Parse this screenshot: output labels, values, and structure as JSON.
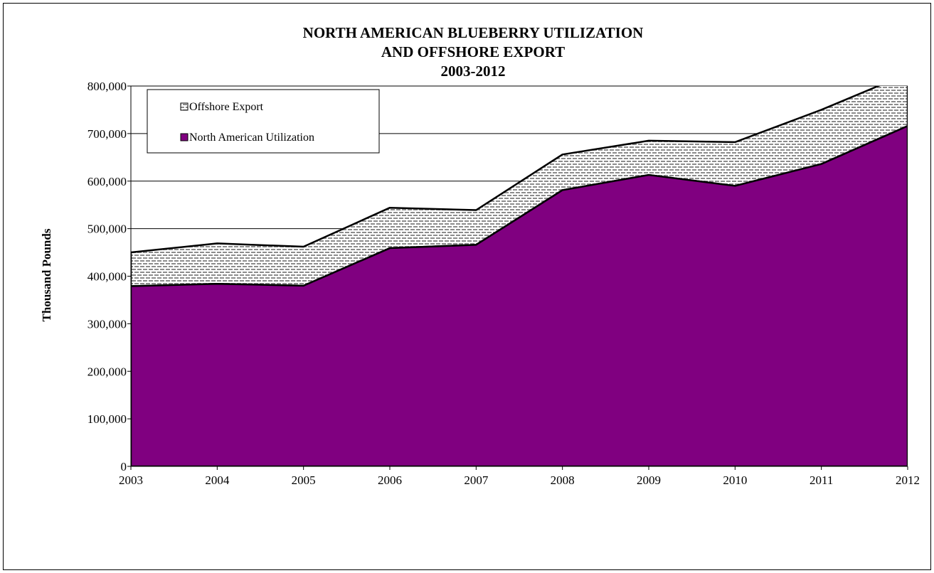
{
  "chart_data": {
    "type": "area",
    "stacked": true,
    "title_lines": [
      "NORTH AMERICAN BLUEBERRY UTILIZATION",
      "AND OFFSHORE EXPORT",
      "2003-2012"
    ],
    "xlabel": "",
    "ylabel": "Thousand Pounds",
    "x": [
      "2003",
      "2004",
      "2005",
      "2006",
      "2007",
      "2008",
      "2009",
      "2010",
      "2011",
      "2012"
    ],
    "ylim": [
      0,
      800000
    ],
    "yticks": [
      0,
      100000,
      200000,
      300000,
      400000,
      500000,
      600000,
      700000,
      800000
    ],
    "ytick_labels": [
      "0",
      "100,000",
      "200,000",
      "300,000",
      "400,000",
      "500,000",
      "600,000",
      "700,000",
      "800,000"
    ],
    "grid": "horizontal",
    "legend": "top-left",
    "series": [
      {
        "name": "North American Utilization",
        "color": "#800080",
        "values": [
          379000,
          384000,
          380000,
          459000,
          466000,
          581000,
          613000,
          590000,
          636000,
          716000
        ]
      },
      {
        "name": "Offshore Export",
        "color": "#d9d9d9",
        "pattern": "brick",
        "values": [
          71000,
          85000,
          82000,
          85000,
          73000,
          75000,
          72000,
          92000,
          114000,
          110000
        ]
      }
    ]
  }
}
